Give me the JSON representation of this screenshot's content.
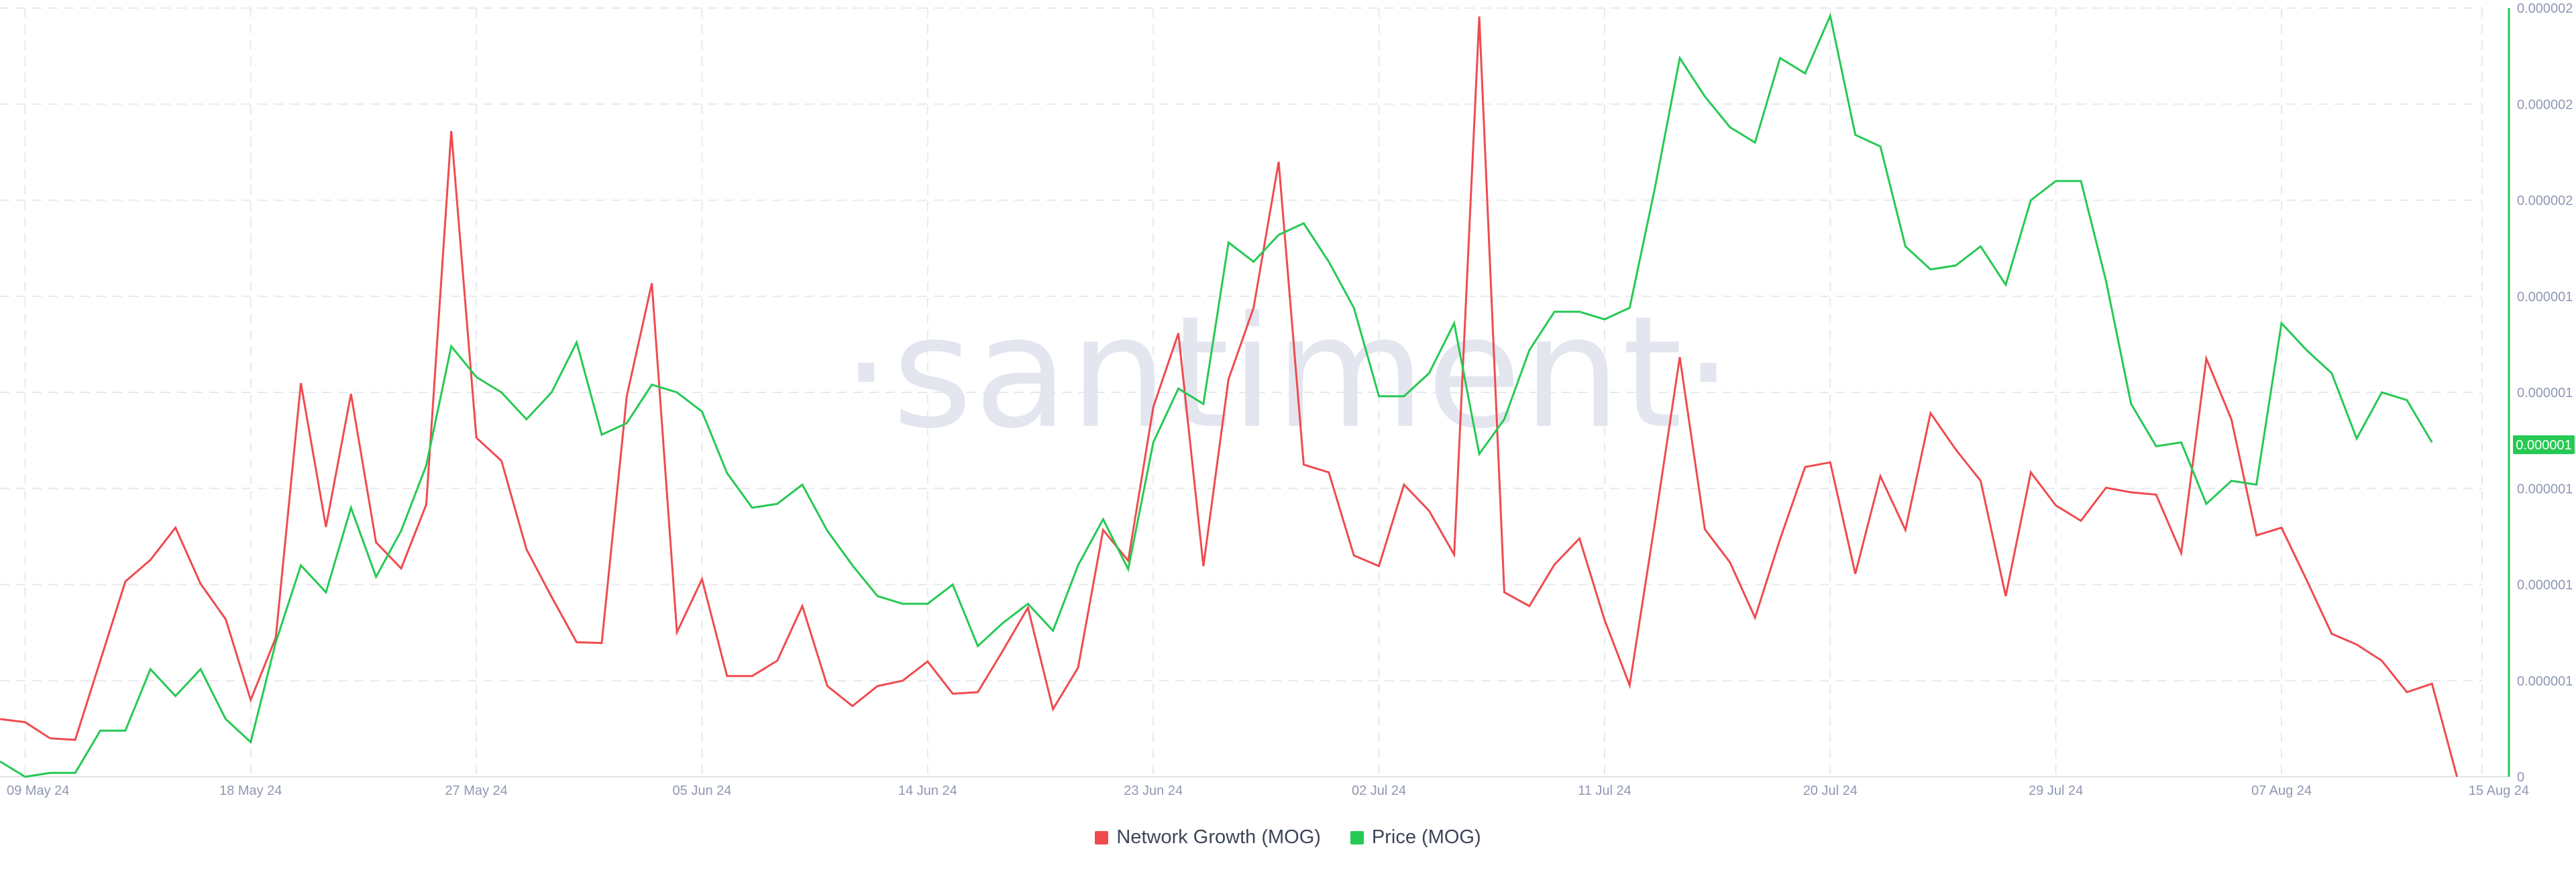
{
  "watermark": "·santiment·",
  "colors": {
    "network_growth": "#ef4b4f",
    "price": "#26c953",
    "grid": "#e7e9ee",
    "axis_text": "#8f97b3"
  },
  "chart_data": {
    "type": "line",
    "x_tick_labels": [
      "09 May 24",
      "18 May 24",
      "27 May 24",
      "05 Jun 24",
      "14 Jun 24",
      "23 Jun 24",
      "02 Jul 24",
      "11 Jul 24",
      "20 Jul 24",
      "29 Jul 24",
      "07 Aug 24",
      "15 Aug 24"
    ],
    "y_right_tick_labels": [
      "0",
      "0.000001",
      "0.000001",
      "0.000001",
      "0.000001",
      "0.000001",
      "0.000002",
      "0.000002",
      "0.000002"
    ],
    "ylim_right": [
      0,
      2e-06
    ],
    "current_price_label": "0.000001",
    "legend": [
      {
        "name": "Network Growth (MOG)",
        "color": "#ef4b4f"
      },
      {
        "name": "Price (MOG)",
        "color": "#26c953"
      }
    ],
    "dates_start": "2024-05-08",
    "series": [
      {
        "name": "Network Growth (MOG)",
        "axis": "hidden-left",
        "ylim": [
          0,
          1
        ],
        "values": [
          0.075,
          0.071,
          0.05,
          0.048,
          0.151,
          0.254,
          0.282,
          0.324,
          0.251,
          0.205,
          0.1,
          0.181,
          0.512,
          0.325,
          0.498,
          0.305,
          0.271,
          0.354,
          0.84,
          0.441,
          0.411,
          0.296,
          0.234,
          0.175,
          0.174,
          0.495,
          0.642,
          0.188,
          0.257,
          0.131,
          0.131,
          0.151,
          0.222,
          0.118,
          0.092,
          0.118,
          0.125,
          0.15,
          0.108,
          0.11,
          0.164,
          0.22,
          0.088,
          0.142,
          0.321,
          0.281,
          0.481,
          0.577,
          0.274,
          0.517,
          0.61,
          0.8,
          0.406,
          0.396,
          0.288,
          0.274,
          0.38,
          0.346,
          0.289,
          0.989,
          0.24,
          0.222,
          0.276,
          0.31,
          0.204,
          0.119,
          0.329,
          0.546,
          0.322,
          0.279,
          0.207,
          0.309,
          0.403,
          0.409,
          0.264,
          0.391,
          0.321,
          0.473,
          0.426,
          0.385,
          0.235,
          0.396,
          0.353,
          0.333,
          0.376,
          0.37,
          0.367,
          0.291,
          0.544,
          0.465,
          0.314,
          0.324,
          0.256,
          0.186,
          0.172,
          0.151,
          0.11,
          0.121,
          0.0
        ]
      },
      {
        "name": "Price (MOG)",
        "axis": "right",
        "ylim": [
          0,
          2e-06
        ],
        "values": [
          4e-08,
          0.0,
          1e-08,
          1e-08,
          1.2e-07,
          1.2e-07,
          2.8e-07,
          2.1e-07,
          2.8e-07,
          1.5e-07,
          9e-08,
          3.5e-07,
          5.5e-07,
          4.8e-07,
          7e-07,
          5.2e-07,
          6.4e-07,
          8.1e-07,
          1.12e-06,
          1.04e-06,
          1e-06,
          9.3e-07,
          1e-06,
          1.13e-06,
          8.9e-07,
          9.2e-07,
          1.02e-06,
          1e-06,
          9.5e-07,
          7.9e-07,
          7e-07,
          7.1e-07,
          7.6e-07,
          6.4e-07,
          5.5e-07,
          4.7e-07,
          4.5e-07,
          4.5e-07,
          5e-07,
          3.4e-07,
          4e-07,
          4.5e-07,
          3.8e-07,
          5.5e-07,
          6.7e-07,
          5.4e-07,
          8.7e-07,
          1.01e-06,
          9.7e-07,
          1.39e-06,
          1.34e-06,
          1.41e-06,
          1.44e-06,
          1.34e-06,
          1.22e-06,
          9.9e-07,
          9.9e-07,
          1.05e-06,
          1.18e-06,
          8.4e-07,
          9.3e-07,
          1.11e-06,
          1.21e-06,
          1.21e-06,
          1.19e-06,
          1.22e-06,
          1.53e-06,
          1.87e-06,
          1.77e-06,
          1.69e-06,
          1.65e-06,
          1.87e-06,
          1.83e-06,
          1.98e-06,
          1.67e-06,
          1.64e-06,
          1.38e-06,
          1.32e-06,
          1.33e-06,
          1.38e-06,
          1.28e-06,
          1.5e-06,
          1.55e-06,
          1.55e-06,
          1.29e-06,
          9.7e-07,
          8.6e-07,
          8.7e-07,
          7.1e-07,
          7.7e-07,
          7.6e-07,
          1.18e-06,
          1.11e-06,
          1.05e-06,
          8.8e-07,
          1e-06,
          9.8e-07,
          8.7e-07
        ]
      }
    ],
    "grid": true,
    "legend_position": "bottom-center"
  }
}
